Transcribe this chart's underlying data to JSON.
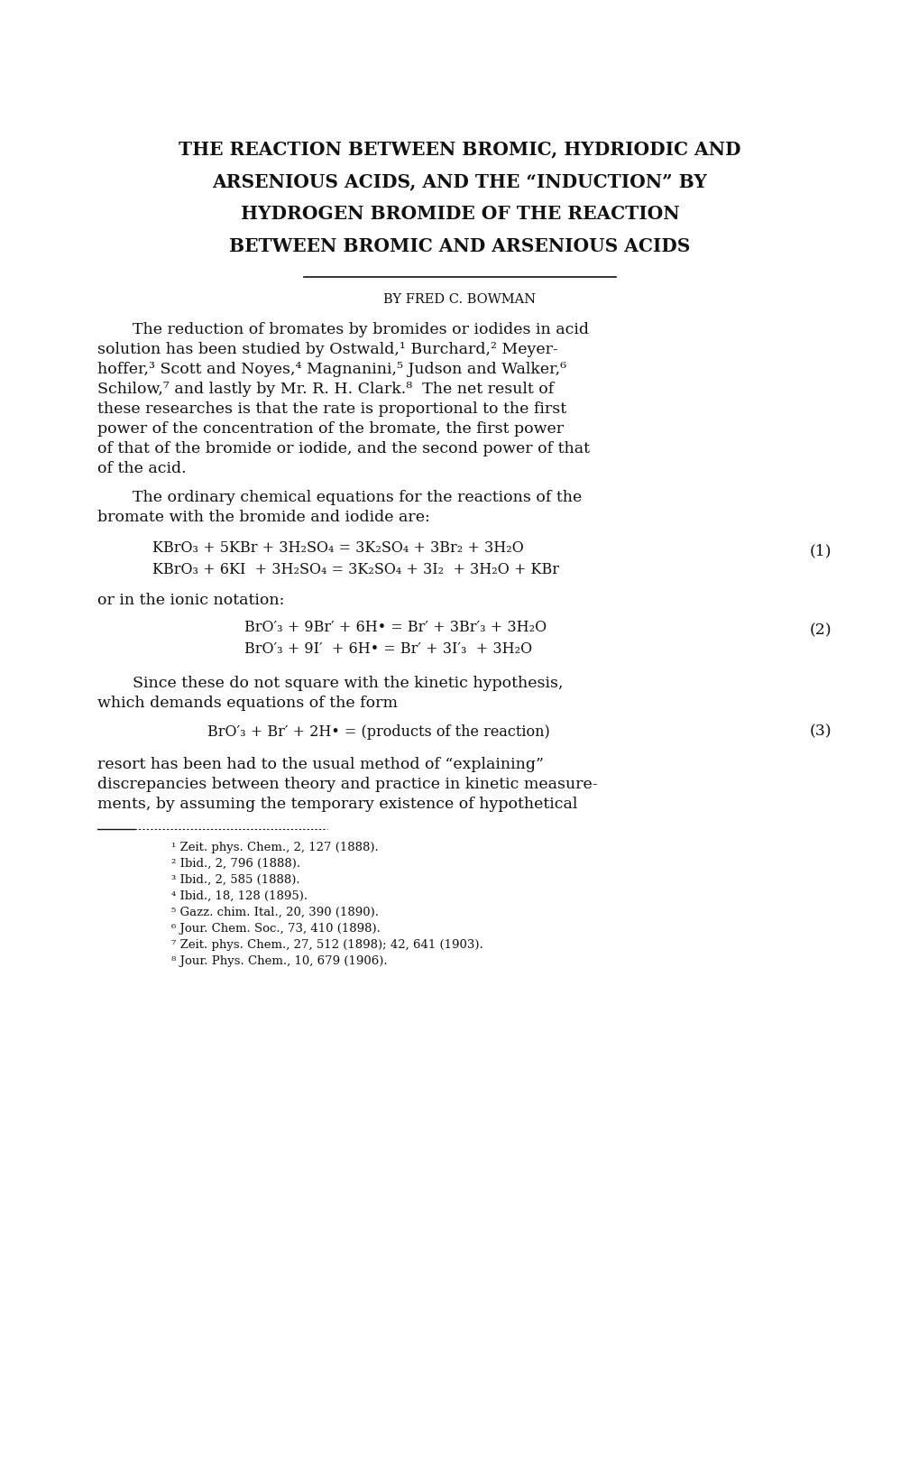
{
  "bg_color": "#ffffff",
  "text_color": "#111111",
  "title_lines": [
    "THE REACTION BETWEEN BROMIC, HYDRIODIC AND",
    "ARSENIOUS ACIDS, AND THE “INDUCTION” BY",
    "HYDROGEN BROMIDE OF THE REACTION",
    "BETWEEN BROMIC AND ARSENIOUS ACIDS"
  ],
  "author_line": "BY FRED C. BOWMAN",
  "p1_lines": [
    "The reduction of bromates by bromides or iodides in acid",
    "solution has been studied by Ostwald,¹ Burchard,² Meyer-",
    "hoffer,³ Scott and Noyes,⁴ Magnanini,⁵ Judson and Walker,⁶",
    "Schilow,⁷ and lastly by Mr. R. H. Clark.⁸  The net result of",
    "these researches is that the rate is proportional to the first",
    "power of the concentration of the bromate, the first power",
    "of that of the bromide or iodide, and the second power of that",
    "of the acid."
  ],
  "p2_lines": [
    "The ordinary chemical equations for the reactions of the",
    "bromate with the bromide and iodide are:"
  ],
  "eq1_line1": "KBrO₃ + 5KBr + 3H₂SO₄ = 3K₂SO₄ + 3Br₂ + 3H₂O",
  "eq1_line2": "KBrO₃ + 6KI  + 3H₂SO₄ = 3K₂SO₄ + 3I₂  + 3H₂O + KBr",
  "eq1_label": "(1)",
  "p3_line": "or in the ionic notation:",
  "eq2_line1": "BrO′₃ + 9Br′ + 6H• = Br′ + 3Br′₃ + 3H₂O",
  "eq2_line2": "BrO′₃ + 9I′  + 6H• = Br′ + 3I′₃  + 3H₂O",
  "eq2_label": "(2)",
  "p4_lines": [
    "Since these do not square with the kinetic hypothesis,",
    "which demands equations of the form"
  ],
  "eq3": "BrO′₃ + Br′ + 2H• = (products of the reaction)",
  "eq3_label": "(3)",
  "p5_lines": [
    "resort has been had to the usual method of “explaining”",
    "discrepancies between theory and practice in kinetic measure-",
    "ments, by assuming the temporary existence of hypothetical"
  ],
  "footnotes": [
    "¹ Zeit. phys. Chem., 2, 127 (1888).",
    "² Ibid., 2, 796 (1888).",
    "³ Ibid., 2, 585 (1888).",
    "⁴ Ibid., 18, 128 (1895).",
    "⁵ Gazz. chim. Ital., 20, 390 (1890).",
    "⁶ Jour. Chem. Soc., 73, 410 (1898).",
    "⁷ Zeit. phys. Chem., 27, 512 (1898); 42, 641 (1903).",
    "⁸ Jour. Phys. Chem., 10, 679 (1906)."
  ],
  "title_fontsize": 14.5,
  "author_fontsize": 10.5,
  "body_fontsize": 12.5,
  "eq_fontsize": 11.5,
  "fn_fontsize": 9.5
}
